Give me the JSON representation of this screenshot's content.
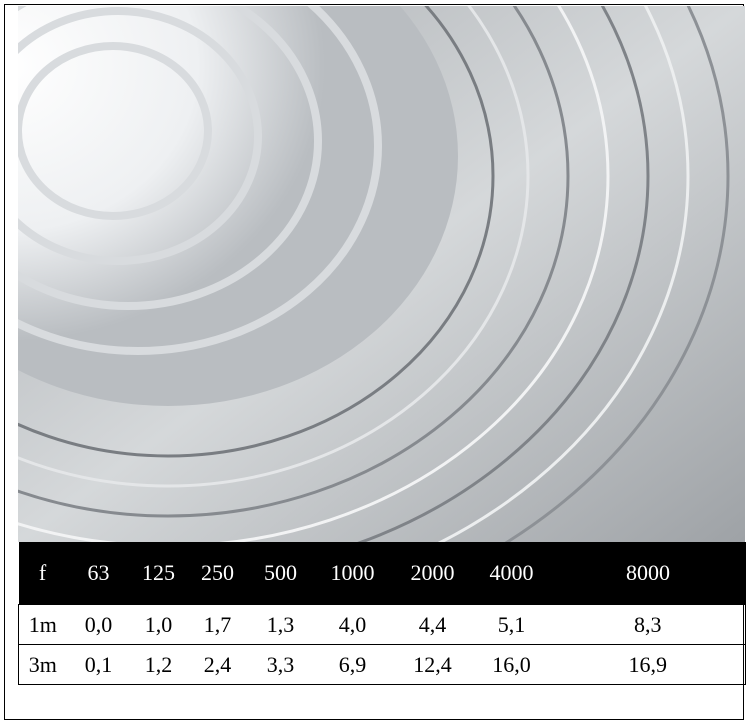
{
  "table": {
    "header": [
      "f",
      "63",
      "125",
      "250",
      "500",
      "1000",
      "2000",
      "4000",
      "8000"
    ],
    "rows": [
      [
        "1m",
        "0,0",
        "1,0",
        "1,7",
        "1,3",
        "4,0",
        "4,4",
        "5,1",
        "8,3"
      ],
      [
        "3m",
        "0,1",
        "1,2",
        "2,4",
        "3,3",
        "6,9",
        "12,4",
        "16,0",
        "16,9"
      ]
    ]
  }
}
